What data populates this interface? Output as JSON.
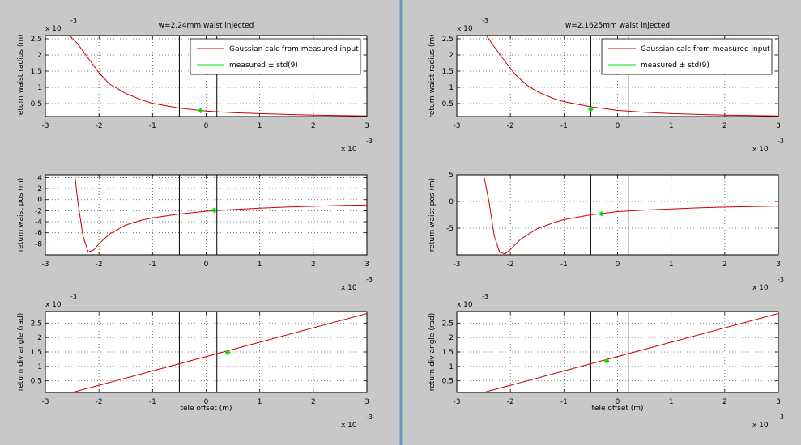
{
  "colors": {
    "background": "#c8c8c8",
    "curve": "#cc0000",
    "measured": "#00dd00",
    "frame": "#000000"
  },
  "figures": [
    {
      "title": "w=2.24mm waist injected"
    },
    {
      "title": "w=2.1625mm waist injected"
    }
  ],
  "chart_data": [
    {
      "figure": 0,
      "type": "line",
      "title": "w=2.24mm waist injected",
      "ylabel": "return waist radius (m)",
      "xlabel": "",
      "xlim": [
        -0.003,
        0.003
      ],
      "ylim": [
        0.0001,
        0.0026
      ],
      "x_tick_labels": [
        "-3",
        "-2",
        "-1",
        "0",
        "1",
        "2",
        "3"
      ],
      "y_tick_labels": [
        "0.5",
        "1",
        "1.5",
        "2",
        "2.5"
      ],
      "x_exponent": "x 10",
      "y_exponent": "x 10",
      "exponent_power": "-3",
      "grid": true,
      "legend_placement": "top-right",
      "vlines": [
        -0.0005,
        0.0002
      ],
      "series": [
        {
          "name": "Gaussian calc from measured input",
          "style": "line",
          "x": [
            -0.00255,
            -0.0024,
            -0.0022,
            -0.002,
            -0.0018,
            -0.0015,
            -0.0012,
            -0.001,
            -0.0005,
            0,
            0.0005,
            0.001,
            0.0015,
            0.002,
            0.0025,
            0.003
          ],
          "y": [
            0.0026,
            0.00235,
            0.0019,
            0.00145,
            0.0011,
            0.00081,
            0.00061,
            0.00051,
            0.00036,
            0.00027,
            0.00022,
            0.00019,
            0.000165,
            0.000145,
            0.00013,
            0.00012
          ]
        },
        {
          "name": "measured ± std(9)",
          "style": "marker",
          "x": [
            -0.0001
          ],
          "y": [
            0.00028
          ]
        }
      ]
    },
    {
      "figure": 0,
      "type": "line",
      "ylabel": "return waist pos (m)",
      "xlabel": "",
      "xlim": [
        -0.003,
        0.003
      ],
      "ylim": [
        -10,
        4.5
      ],
      "x_tick_labels": [
        "-3",
        "-2",
        "-1",
        "0",
        "1",
        "2",
        "3"
      ],
      "y_tick_labels": [
        "4",
        "2",
        "0",
        "-2",
        "-4",
        "-6",
        "-8"
      ],
      "x_exponent": "x 10",
      "exponent_power": "-3",
      "grid": true,
      "vlines": [
        -0.0005,
        0.0002
      ],
      "series": [
        {
          "style": "line",
          "x": [
            -0.00245,
            -0.0024,
            -0.0023,
            -0.0022,
            -0.0021,
            -0.002,
            -0.0018,
            -0.0015,
            -0.0012,
            -0.001,
            -0.0005,
            0,
            0.0005,
            0.001,
            0.0015,
            0.002,
            0.0025,
            0.003
          ],
          "y": [
            4.5,
            0,
            -6.5,
            -9.5,
            -9.1,
            -8,
            -6.2,
            -4.6,
            -3.7,
            -3.3,
            -2.6,
            -2.1,
            -1.8,
            -1.55,
            -1.35,
            -1.2,
            -1.05,
            -0.95
          ]
        },
        {
          "style": "marker",
          "x": [
            0.00015
          ],
          "y": [
            -1.9
          ]
        }
      ]
    },
    {
      "figure": 0,
      "type": "line",
      "ylabel": "return div angle (rad)",
      "xlabel": "tele offset (m)",
      "xlim": [
        -0.003,
        0.003
      ],
      "ylim": [
        0.0001,
        0.0029
      ],
      "x_tick_labels": [
        "-3",
        "-2",
        "-1",
        "0",
        "1",
        "2",
        "3"
      ],
      "y_tick_labels": [
        "0.5",
        "1",
        "1.5",
        "2",
        "2.5"
      ],
      "x_exponent": "x 10",
      "y_exponent": "x 10",
      "exponent_power": "-3",
      "grid": true,
      "vlines": [
        -0.0005,
        0.0002
      ],
      "series": [
        {
          "style": "line",
          "x": [
            -0.0025,
            0.003
          ],
          "y": [
            0.0001,
            0.00283
          ]
        },
        {
          "style": "marker",
          "x": [
            0.0004
          ],
          "y": [
            0.00148
          ]
        }
      ]
    },
    {
      "figure": 1,
      "type": "line",
      "title": "w=2.1625mm waist injected",
      "ylabel": "return waist radius (m)",
      "xlabel": "",
      "xlim": [
        -0.003,
        0.003
      ],
      "ylim": [
        0.0001,
        0.0026
      ],
      "x_tick_labels": [
        "-3",
        "-2",
        "-1",
        "0",
        "1",
        "2",
        "3"
      ],
      "y_tick_labels": [
        "0.5",
        "1",
        "1.5",
        "2",
        "2.5"
      ],
      "x_exponent": "x 10",
      "y_exponent": "x 10",
      "exponent_power": "-3",
      "grid": true,
      "legend_placement": "top-right",
      "vlines": [
        -0.0005,
        0.0002
      ],
      "series": [
        {
          "name": "Gaussian calc from measured input",
          "style": "line",
          "x": [
            -0.00245,
            -0.0023,
            -0.0021,
            -0.0019,
            -0.0017,
            -0.0015,
            -0.0012,
            -0.001,
            -0.0005,
            0,
            0.0005,
            0.001,
            0.0015,
            0.002,
            0.0025,
            0.003
          ],
          "y": [
            0.0026,
            0.00225,
            0.0018,
            0.00138,
            0.00108,
            0.00087,
            0.00066,
            0.00056,
            0.0004,
            0.00029,
            0.00023,
            0.00019,
            0.000165,
            0.000145,
            0.00013,
            0.00012
          ]
        },
        {
          "name": "measured ± std(9)",
          "style": "marker",
          "x": [
            -0.0005
          ],
          "y": [
            0.00032
          ]
        }
      ]
    },
    {
      "figure": 1,
      "type": "line",
      "ylabel": "return waist pos (m)",
      "xlabel": "",
      "xlim": [
        -0.003,
        0.003
      ],
      "ylim": [
        -10,
        5
      ],
      "x_tick_labels": [
        "-3",
        "-2",
        "-1",
        "0",
        "1",
        "2",
        "3"
      ],
      "y_tick_labels": [
        "5",
        "0",
        "-5"
      ],
      "x_exponent": "x 10",
      "exponent_power": "-3",
      "grid": true,
      "vlines": [
        -0.0005,
        0.0002
      ],
      "series": [
        {
          "style": "line",
          "x": [
            -0.0025,
            -0.0024,
            -0.0023,
            -0.0022,
            -0.0021,
            -0.002,
            -0.0018,
            -0.0015,
            -0.0012,
            -0.001,
            -0.0005,
            0,
            0.0005,
            0.001,
            0.0015,
            0.002,
            0.0025,
            0.003
          ],
          "y": [
            5,
            0,
            -6.5,
            -9.5,
            -9.8,
            -9,
            -7,
            -5.1,
            -4,
            -3.4,
            -2.5,
            -1.9,
            -1.6,
            -1.4,
            -1.2,
            -1.05,
            -0.95,
            -0.85
          ]
        },
        {
          "style": "marker",
          "x": [
            -0.0003
          ],
          "y": [
            -2.3
          ]
        }
      ]
    },
    {
      "figure": 1,
      "type": "line",
      "ylabel": "return div angle (rad)",
      "xlabel": "tele offset (m)",
      "xlim": [
        -0.003,
        0.003
      ],
      "ylim": [
        0.0001,
        0.0029
      ],
      "x_tick_labels": [
        "-3",
        "-2",
        "-1",
        "0",
        "1",
        "2",
        "3"
      ],
      "y_tick_labels": [
        "0.5",
        "1",
        "1.5",
        "2",
        "2.5"
      ],
      "x_exponent": "x 10",
      "y_exponent": "x 10",
      "exponent_power": "-3",
      "grid": true,
      "vlines": [
        -0.0005,
        0.0002
      ],
      "series": [
        {
          "style": "line",
          "x": [
            -0.0025,
            0.003
          ],
          "y": [
            0.0001,
            0.00283
          ]
        },
        {
          "style": "marker",
          "x": [
            -0.0002
          ],
          "y": [
            0.00118
          ]
        }
      ]
    }
  ]
}
